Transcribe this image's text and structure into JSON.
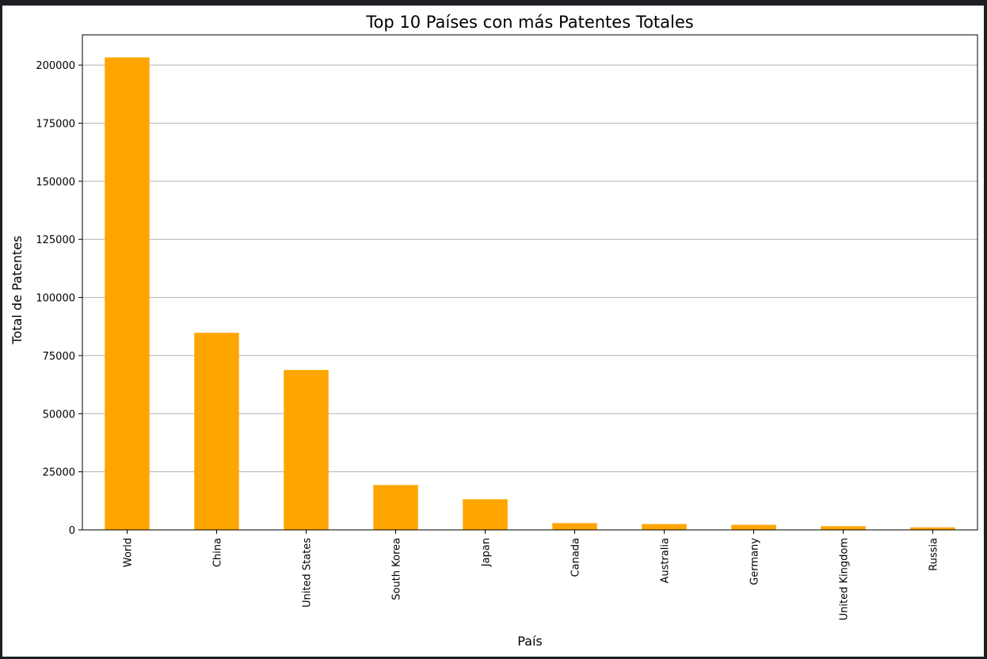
{
  "chart_data": {
    "type": "bar",
    "title": "Top 10 Países con más Patentes Totales",
    "xlabel": "País",
    "ylabel": "Total de Patentes",
    "categories": [
      "World",
      "China",
      "United States",
      "South Korea",
      "Japan",
      "Canada",
      "Australia",
      "Germany",
      "United Kingdom",
      "Russia"
    ],
    "values": [
      203300,
      84800,
      68800,
      19300,
      13200,
      2900,
      2500,
      2200,
      1600,
      1100
    ],
    "ylim": [
      0,
      213000
    ],
    "yticks": [
      0,
      25000,
      50000,
      75000,
      100000,
      125000,
      150000,
      175000,
      200000
    ],
    "grid": "y",
    "bar_color": "#ffa500"
  }
}
